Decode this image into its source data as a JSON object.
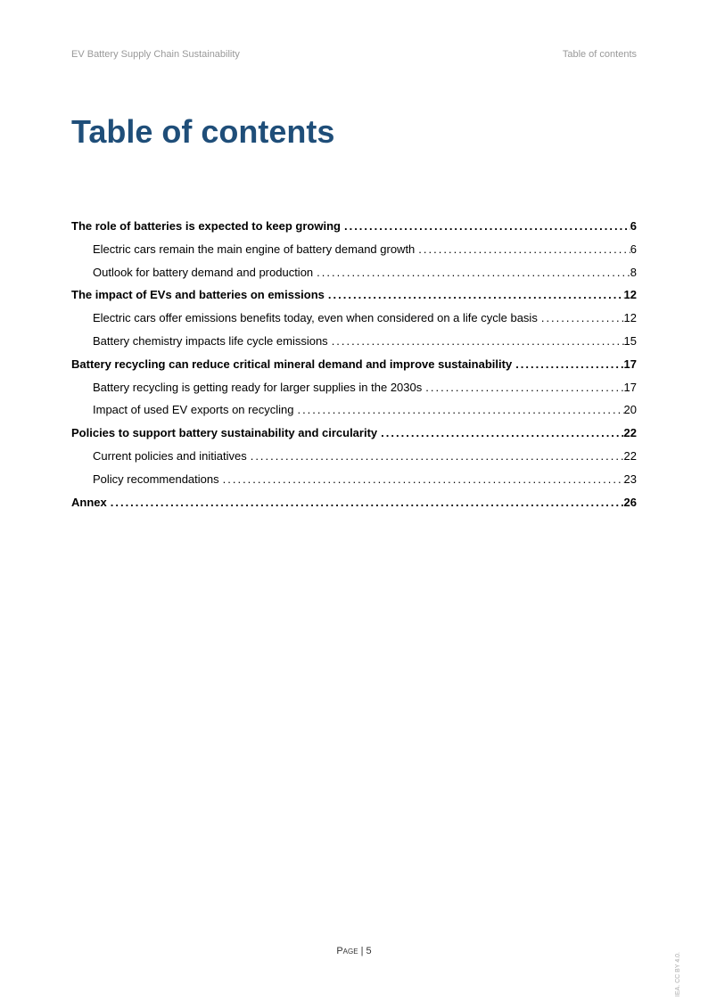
{
  "header": {
    "left": "EV Battery Supply Chain Sustainability",
    "right": "Table of contents"
  },
  "title": "Table of contents",
  "toc": [
    {
      "level": 1,
      "label": "The role of batteries is expected to keep growing",
      "page": "6"
    },
    {
      "level": 2,
      "label": "Electric cars remain the main engine of battery demand growth",
      "page": "6"
    },
    {
      "level": 2,
      "label": "Outlook for battery demand and production",
      "page": "8"
    },
    {
      "level": 1,
      "label": "The impact of EVs and batteries on emissions",
      "page": "12"
    },
    {
      "level": 2,
      "label": "Electric cars offer emissions benefits today, even when considered on a life cycle basis",
      "page": "12"
    },
    {
      "level": 2,
      "label": "Battery chemistry impacts life cycle emissions",
      "page": "15"
    },
    {
      "level": 1,
      "label": "Battery recycling can reduce critical mineral demand and improve sustainability",
      "page": "17"
    },
    {
      "level": 2,
      "label": "Battery recycling is getting ready for larger supplies in the 2030s",
      "page": "17"
    },
    {
      "level": 2,
      "label": "Impact of used EV exports on recycling",
      "page": "20"
    },
    {
      "level": 1,
      "label": "Policies to support battery sustainability and circularity",
      "page": "22"
    },
    {
      "level": 2,
      "label": "Current policies and initiatives",
      "page": "22"
    },
    {
      "level": 2,
      "label": "Policy recommendations",
      "page": "23"
    },
    {
      "level": 1,
      "label": "Annex",
      "page": "26"
    }
  ],
  "footer": {
    "pageLabel": "Page | 5"
  },
  "license": "IEA. CC BY 4.0."
}
